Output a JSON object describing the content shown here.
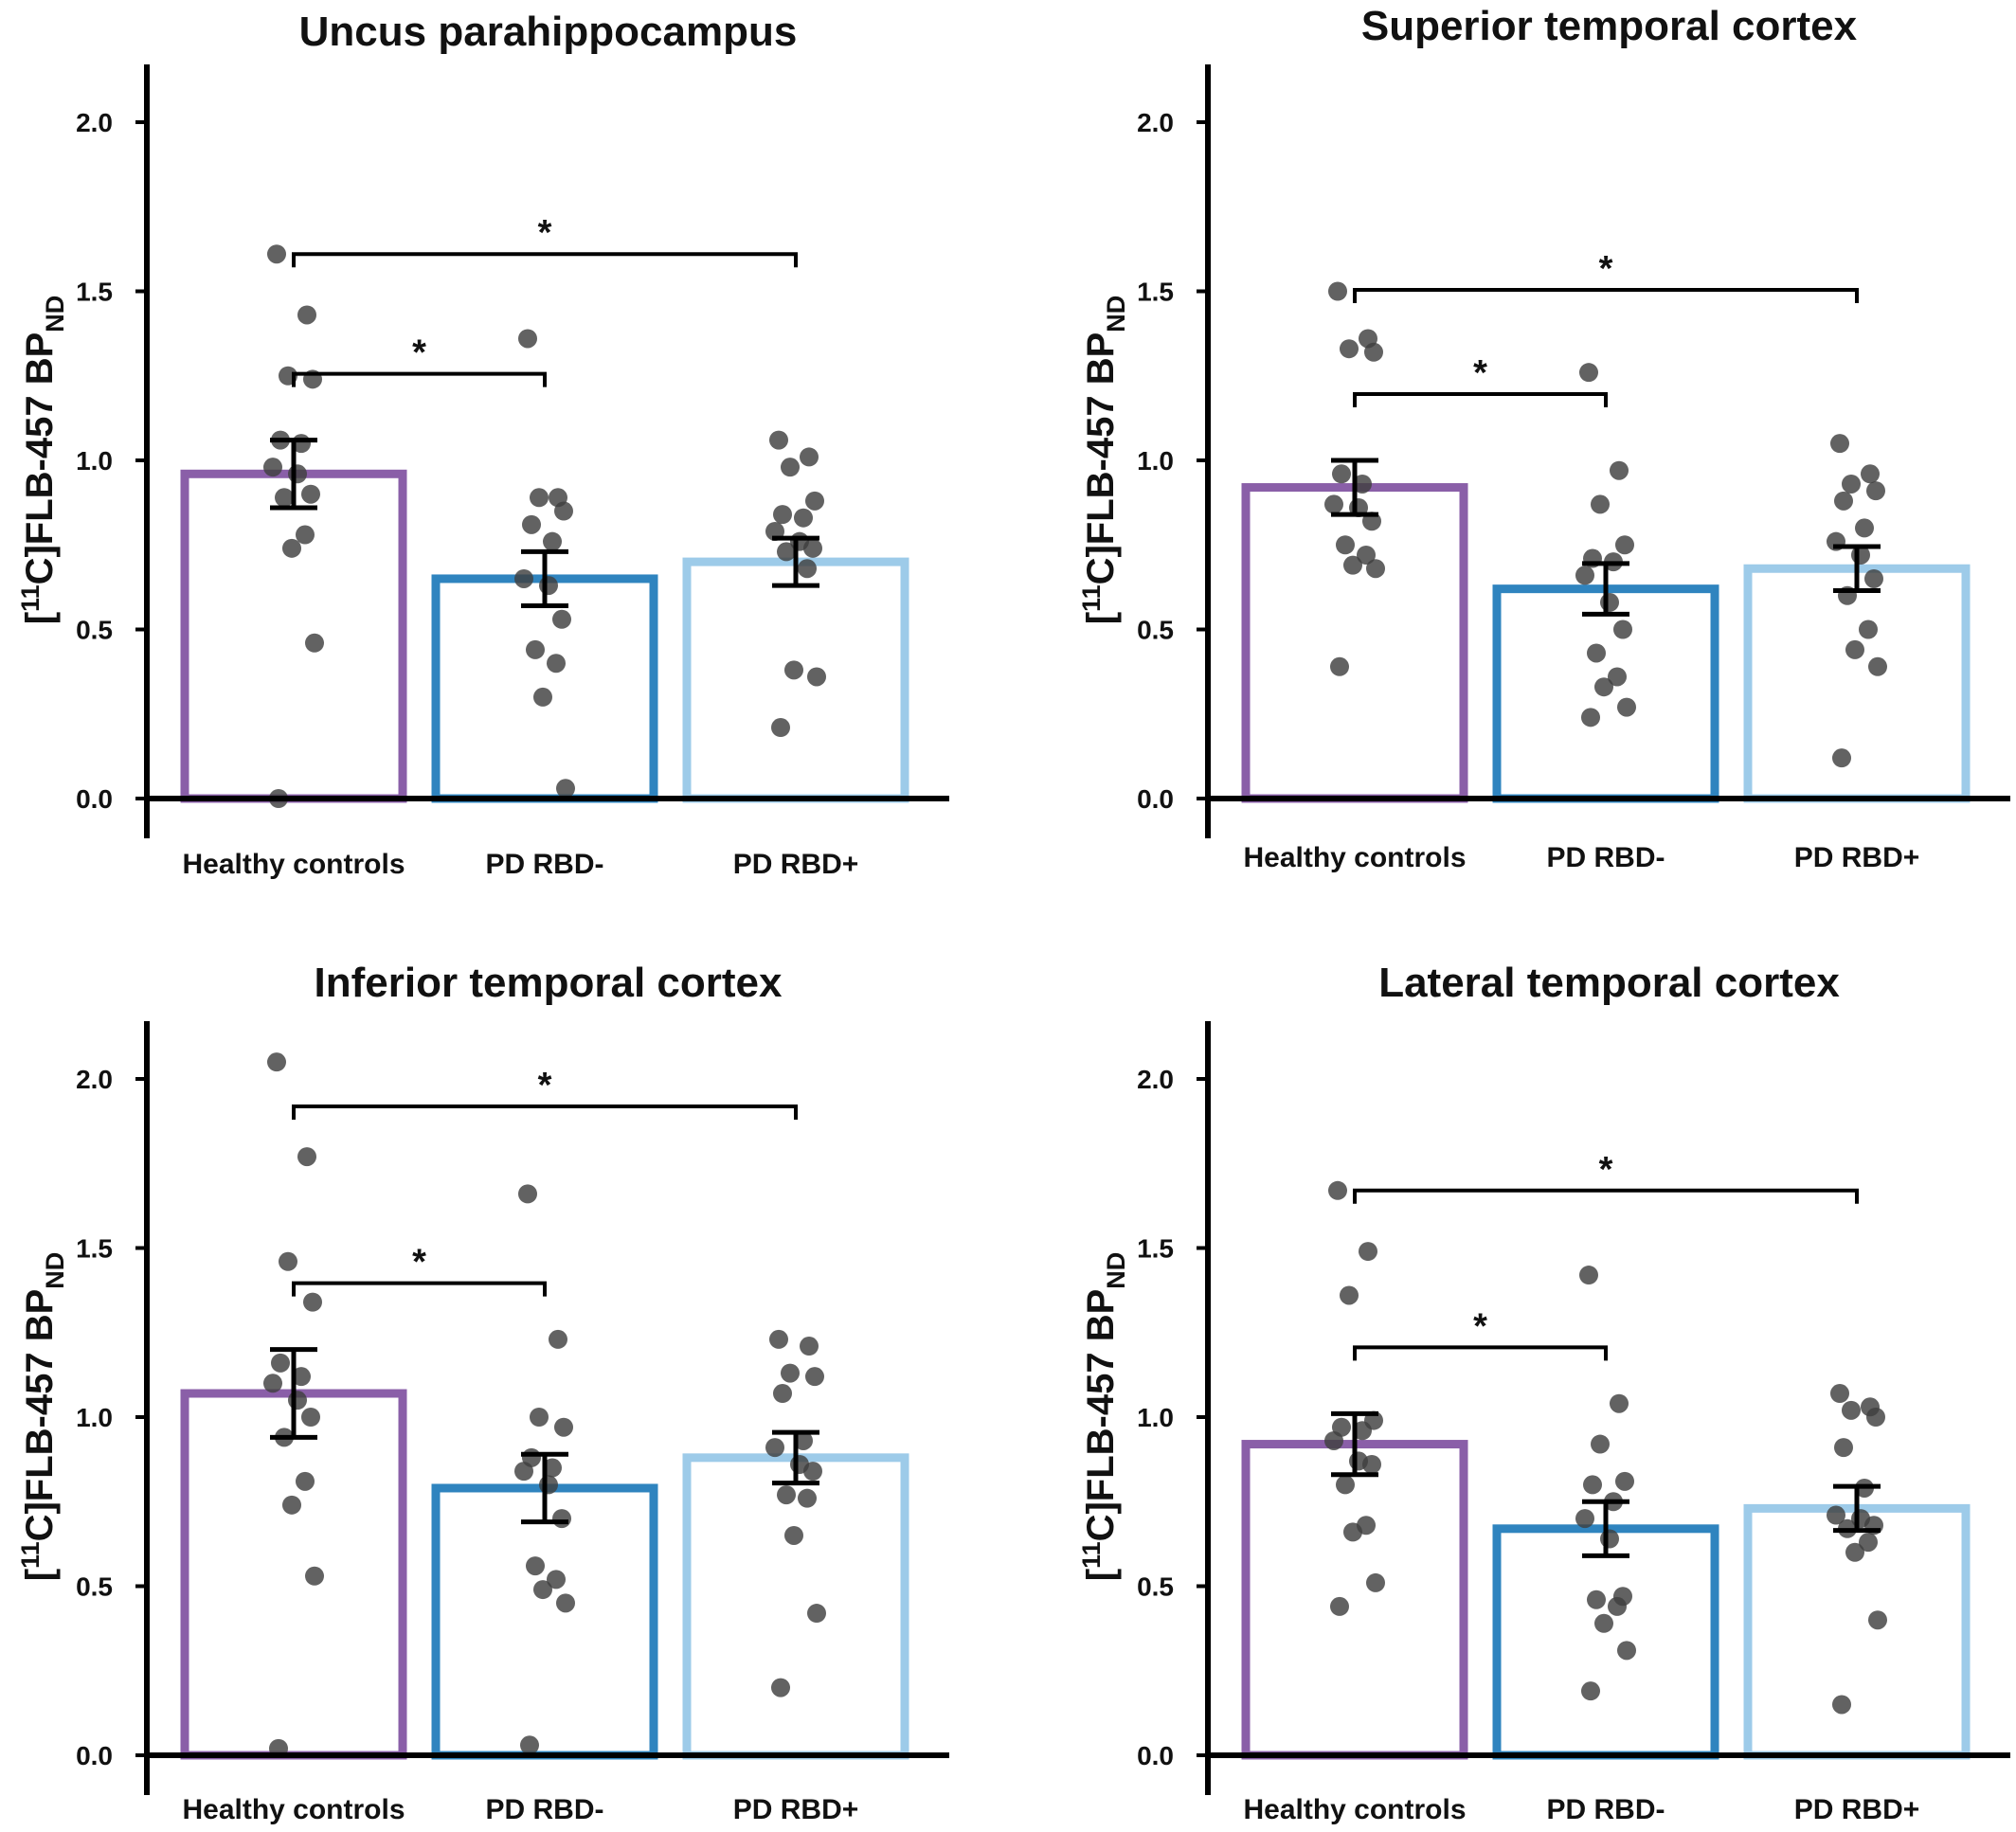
{
  "chart_data": [
    {
      "type": "bar",
      "title": "Uncus parahippocampus",
      "ylabel": {
        "open": "[",
        "sup": "11",
        "main": "C]FLB-457 BP",
        "sub": "ND"
      },
      "categories": [
        "Healthy controls",
        "PD RBD-",
        "PD RBD+"
      ],
      "yticks": [
        "0.0",
        "0.5",
        "1.0",
        "1.5",
        "2.0"
      ],
      "ylim": [
        -0.1,
        2.18
      ],
      "means": [
        0.96,
        0.65,
        0.7
      ],
      "sem": [
        0.1,
        0.08,
        0.07
      ],
      "points": [
        [
          1.61,
          1.43,
          1.25,
          1.24,
          1.06,
          1.05,
          0.98,
          0.96,
          0.9,
          0.89,
          0.78,
          0.74,
          0.46,
          0.0
        ],
        [
          1.36,
          0.89,
          0.89,
          0.85,
          0.81,
          0.76,
          0.65,
          0.63,
          0.53,
          0.44,
          0.4,
          0.3,
          0.03
        ],
        [
          1.06,
          1.01,
          0.98,
          0.88,
          0.84,
          0.83,
          0.79,
          0.76,
          0.74,
          0.73,
          0.68,
          0.38,
          0.36,
          0.21
        ]
      ],
      "significance": [
        {
          "from": 0,
          "to": 1,
          "label": "*"
        },
        {
          "from": 0,
          "to": 2,
          "label": "*"
        }
      ],
      "colors": [
        "#8a5fa8",
        "#2f84bf",
        "#9dcbe9"
      ]
    },
    {
      "type": "bar",
      "title": "Superior temporal cortex",
      "ylabel": {
        "open": "[",
        "sup": "11",
        "main": "C]FLB-457 BP",
        "sub": "ND"
      },
      "categories": [
        "Healthy controls",
        "PD RBD-",
        "PD RBD+"
      ],
      "yticks": [
        "0.0",
        "0.5",
        "1.0",
        "1.5",
        "2.0"
      ],
      "ylim": [
        -0.1,
        2.18
      ],
      "means": [
        0.92,
        0.62,
        0.68
      ],
      "sem": [
        0.08,
        0.075,
        0.065
      ],
      "points": [
        [
          1.5,
          1.36,
          1.33,
          1.32,
          0.96,
          0.93,
          0.87,
          0.86,
          0.82,
          0.75,
          0.72,
          0.69,
          0.68,
          0.39
        ],
        [
          1.26,
          0.97,
          0.87,
          0.75,
          0.71,
          0.7,
          0.66,
          0.58,
          0.5,
          0.43,
          0.36,
          0.33,
          0.27,
          0.24
        ],
        [
          1.05,
          0.96,
          0.93,
          0.91,
          0.88,
          0.8,
          0.76,
          0.72,
          0.65,
          0.6,
          0.5,
          0.44,
          0.39,
          0.12
        ]
      ],
      "significance": [
        {
          "from": 0,
          "to": 1,
          "label": "*"
        },
        {
          "from": 0,
          "to": 2,
          "label": "*"
        }
      ],
      "colors": [
        "#8a5fa8",
        "#2f84bf",
        "#9dcbe9"
      ]
    },
    {
      "type": "bar",
      "title": "Inferior temporal cortex",
      "ylabel": {
        "open": "[",
        "sup": "11",
        "main": "C]FLB-457 BP",
        "sub": "ND"
      },
      "categories": [
        "Healthy controls",
        "PD RBD-",
        "PD RBD+"
      ],
      "yticks": [
        "0.0",
        "0.5",
        "1.0",
        "1.5",
        "2.0"
      ],
      "ylim": [
        -0.1,
        2.18
      ],
      "means": [
        1.07,
        0.79,
        0.88
      ],
      "sem": [
        0.13,
        0.1,
        0.075
      ],
      "points": [
        [
          2.05,
          1.77,
          1.46,
          1.34,
          1.16,
          1.12,
          1.1,
          1.05,
          1.0,
          0.94,
          0.81,
          0.74,
          0.53,
          0.02
        ],
        [
          1.66,
          1.23,
          1.0,
          0.97,
          0.88,
          0.85,
          0.84,
          0.8,
          0.7,
          0.56,
          0.52,
          0.49,
          0.45,
          0.03
        ],
        [
          1.23,
          1.21,
          1.13,
          1.12,
          1.07,
          0.93,
          0.91,
          0.86,
          0.84,
          0.77,
          0.76,
          0.65,
          0.42,
          0.2
        ]
      ],
      "significance": [
        {
          "from": 0,
          "to": 1,
          "label": "*"
        },
        {
          "from": 0,
          "to": 2,
          "label": "*"
        }
      ],
      "colors": [
        "#8a5fa8",
        "#2f84bf",
        "#9dcbe9"
      ]
    },
    {
      "type": "bar",
      "title": "Lateral temporal cortex",
      "ylabel": {
        "open": "[",
        "sup": "11",
        "main": "C]FLB-457 BP",
        "sub": "ND"
      },
      "categories": [
        "Healthy controls",
        "PD RBD-",
        "PD RBD+"
      ],
      "yticks": [
        "0.0",
        "0.5",
        "1.0",
        "1.5",
        "2.0"
      ],
      "ylim": [
        -0.1,
        2.18
      ],
      "means": [
        0.92,
        0.67,
        0.73
      ],
      "sem": [
        0.09,
        0.08,
        0.065
      ],
      "points": [
        [
          1.67,
          1.49,
          1.36,
          0.99,
          0.97,
          0.96,
          0.93,
          0.87,
          0.86,
          0.8,
          0.68,
          0.66,
          0.51,
          0.44
        ],
        [
          1.42,
          1.04,
          0.92,
          0.81,
          0.8,
          0.75,
          0.7,
          0.64,
          0.47,
          0.46,
          0.44,
          0.39,
          0.31,
          0.19
        ],
        [
          1.07,
          1.03,
          1.02,
          1.0,
          0.91,
          0.79,
          0.71,
          0.7,
          0.68,
          0.67,
          0.63,
          0.6,
          0.4,
          0.15
        ]
      ],
      "significance": [
        {
          "from": 0,
          "to": 1,
          "label": "*"
        },
        {
          "from": 0,
          "to": 2,
          "label": "*"
        }
      ],
      "colors": [
        "#8a5fa8",
        "#2f84bf",
        "#9dcbe9"
      ]
    }
  ]
}
